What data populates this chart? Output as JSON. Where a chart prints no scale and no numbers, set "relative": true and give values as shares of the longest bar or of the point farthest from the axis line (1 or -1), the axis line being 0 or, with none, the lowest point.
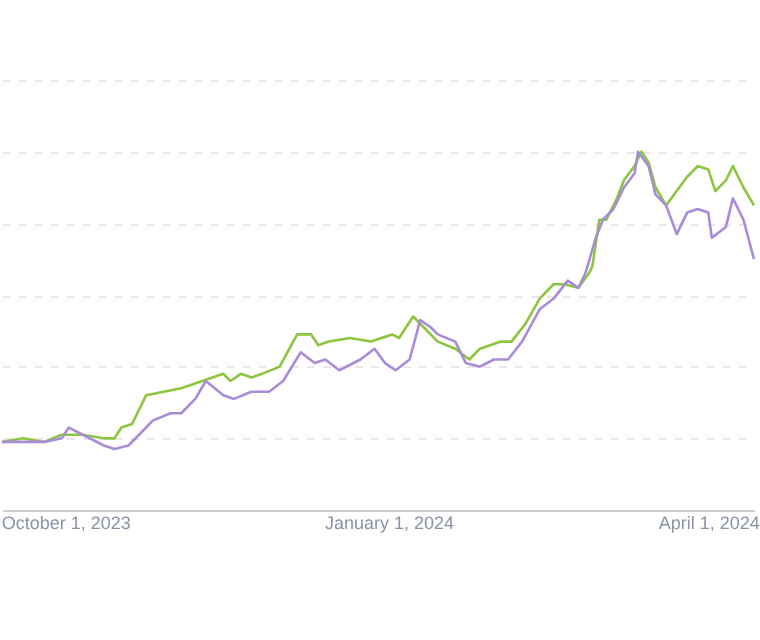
{
  "chart_data": {
    "type": "line",
    "relative": true,
    "grid": "y",
    "legend": false,
    "marker": "none",
    "line_style": "solid",
    "xlim": [
      "2023-09-13",
      "2024-04-14"
    ],
    "xticks": [
      {
        "value": "2023-10-01",
        "label": "October 1, 2023"
      },
      {
        "value": "2024-01-01",
        "label": "January 1, 2024"
      },
      {
        "value": "2024-04-01",
        "label": "April 1, 2024"
      }
    ],
    "series": [
      {
        "color": "#8cc63f",
        "x": [
          "2023-09-13",
          "2023-09-19",
          "2023-09-25",
          "2023-09-30",
          "2023-10-06",
          "2023-10-12",
          "2023-10-15",
          "2023-10-17",
          "2023-10-20",
          "2023-10-24",
          "2023-10-29",
          "2023-11-03",
          "2023-11-09",
          "2023-11-15",
          "2023-11-17",
          "2023-11-20",
          "2023-11-23",
          "2023-11-26",
          "2023-12-01",
          "2023-12-06",
          "2023-12-10",
          "2023-12-12",
          "2023-12-15",
          "2023-12-21",
          "2023-12-27",
          "2024-01-02",
          "2024-01-04",
          "2024-01-08",
          "2024-01-11",
          "2024-01-15",
          "2024-01-20",
          "2024-01-24",
          "2024-01-27",
          "2024-02-02",
          "2024-02-05",
          "2024-02-09",
          "2024-02-13",
          "2024-02-17",
          "2024-02-20",
          "2024-02-24",
          "2024-02-27",
          "2024-02-28",
          "2024-03-01",
          "2024-03-03",
          "2024-03-06",
          "2024-03-08",
          "2024-03-11",
          "2024-03-13",
          "2024-03-15",
          "2024-03-17",
          "2024-03-20",
          "2024-03-23",
          "2024-03-26",
          "2024-03-29",
          "2024-04-01",
          "2024-04-03",
          "2024-04-06",
          "2024-04-08",
          "2024-04-11",
          "2024-04-14"
        ],
        "values": [
          0.19,
          0.2,
          0.19,
          0.21,
          0.21,
          0.2,
          0.2,
          0.23,
          0.24,
          0.32,
          0.33,
          0.34,
          0.36,
          0.38,
          0.36,
          0.38,
          0.37,
          0.38,
          0.4,
          0.49,
          0.49,
          0.46,
          0.47,
          0.48,
          0.47,
          0.49,
          0.48,
          0.54,
          0.51,
          0.47,
          0.45,
          0.42,
          0.45,
          0.47,
          0.47,
          0.52,
          0.59,
          0.63,
          0.63,
          0.62,
          0.66,
          0.68,
          0.81,
          0.81,
          0.87,
          0.92,
          0.96,
          1.0,
          0.97,
          0.9,
          0.85,
          0.89,
          0.93,
          0.96,
          0.95,
          0.89,
          0.92,
          0.96,
          0.9,
          0.85
        ]
      },
      {
        "color": "#a98bd8",
        "x": [
          "2023-09-13",
          "2023-09-25",
          "2023-09-30",
          "2023-10-02",
          "2023-10-06",
          "2023-10-12",
          "2023-10-15",
          "2023-10-19",
          "2023-10-22",
          "2023-10-26",
          "2023-10-31",
          "2023-11-03",
          "2023-11-07",
          "2023-11-10",
          "2023-11-15",
          "2023-11-18",
          "2023-11-23",
          "2023-11-28",
          "2023-12-02",
          "2023-12-07",
          "2023-12-11",
          "2023-12-14",
          "2023-12-18",
          "2023-12-24",
          "2023-12-28",
          "2023-12-31",
          "2024-01-03",
          "2024-01-07",
          "2024-01-10",
          "2024-01-13",
          "2024-01-15",
          "2024-01-20",
          "2024-01-23",
          "2024-01-27",
          "2024-01-31",
          "2024-02-04",
          "2024-02-08",
          "2024-02-13",
          "2024-02-17",
          "2024-02-21",
          "2024-02-24",
          "2024-02-26",
          "2024-02-29",
          "2024-03-02",
          "2024-03-05",
          "2024-03-08",
          "2024-03-11",
          "2024-03-12",
          "2024-03-15",
          "2024-03-17",
          "2024-03-20",
          "2024-03-23",
          "2024-03-26",
          "2024-03-29",
          "2024-04-01",
          "2024-04-02",
          "2024-04-06",
          "2024-04-08",
          "2024-04-11",
          "2024-04-14"
        ],
        "values": [
          0.19,
          0.19,
          0.2,
          0.23,
          0.21,
          0.18,
          0.17,
          0.18,
          0.21,
          0.25,
          0.27,
          0.27,
          0.31,
          0.36,
          0.32,
          0.31,
          0.33,
          0.33,
          0.36,
          0.44,
          0.41,
          0.42,
          0.39,
          0.42,
          0.45,
          0.41,
          0.39,
          0.42,
          0.53,
          0.51,
          0.49,
          0.47,
          0.41,
          0.4,
          0.42,
          0.42,
          0.47,
          0.56,
          0.59,
          0.64,
          0.62,
          0.66,
          0.76,
          0.81,
          0.84,
          0.9,
          0.94,
          1.0,
          0.96,
          0.88,
          0.85,
          0.77,
          0.83,
          0.84,
          0.83,
          0.76,
          0.79,
          0.87,
          0.81,
          0.7
        ]
      }
    ]
  }
}
